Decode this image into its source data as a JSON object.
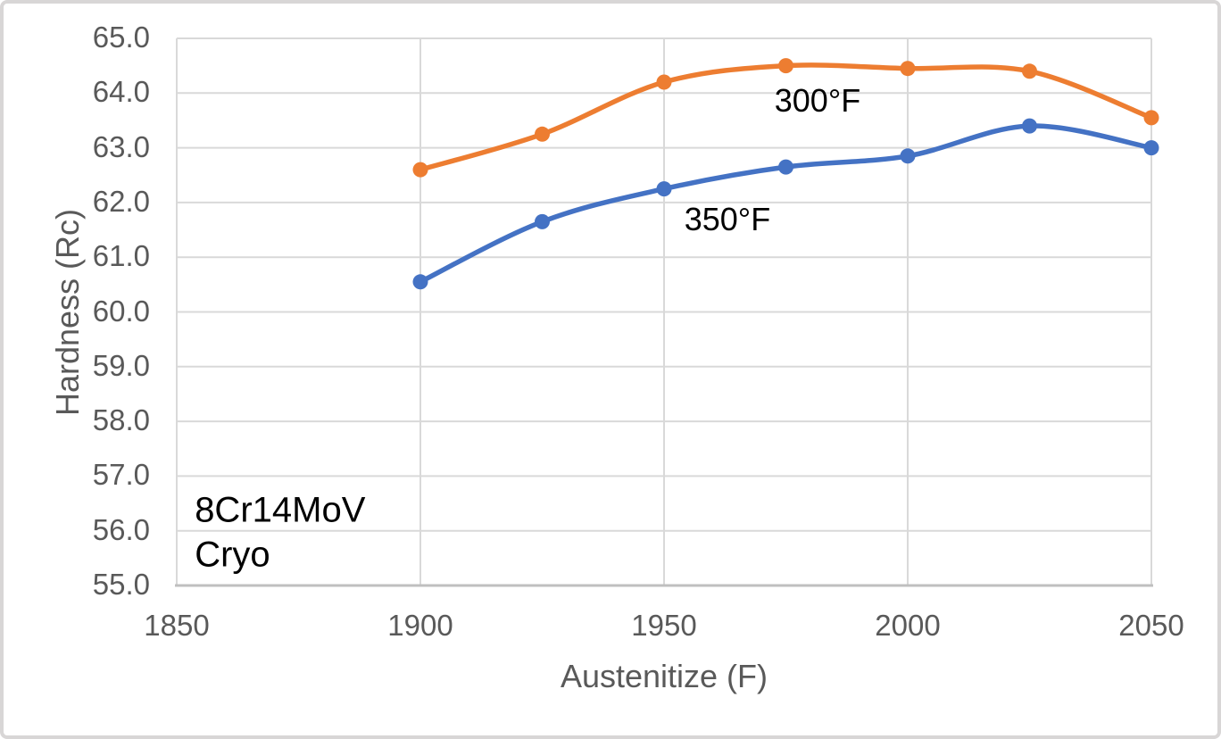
{
  "chart_data": {
    "type": "line",
    "title": "",
    "xlabel": "Austenitize (F)",
    "ylabel": "Hardness (Rc)",
    "xlim": [
      1850,
      2050
    ],
    "ylim": [
      55.0,
      65.0
    ],
    "grid": true,
    "legend_position": "inline-labels",
    "x": [
      1900,
      1925,
      1950,
      1975,
      2000,
      2025,
      2050
    ],
    "series": [
      {
        "name": "300°F",
        "color": "#ED7D31",
        "values": [
          62.6,
          63.25,
          64.2,
          64.5,
          64.45,
          64.4,
          63.55
        ],
        "label": {
          "text": "300°F",
          "x": 1981.5,
          "y": 63.86
        }
      },
      {
        "name": "350°F",
        "color": "#4472C4",
        "values": [
          60.55,
          61.65,
          62.25,
          62.65,
          62.85,
          63.4,
          63.0
        ],
        "label": {
          "text": "350°F",
          "x": 1963.0,
          "y": 61.69
        }
      }
    ],
    "x_ticks": [
      {
        "value": 1850,
        "label": "1850"
      },
      {
        "value": 1900,
        "label": "1900"
      },
      {
        "value": 1950,
        "label": "1950"
      },
      {
        "value": 2000,
        "label": "2000"
      },
      {
        "value": 2050,
        "label": "2050"
      }
    ],
    "y_ticks": [
      {
        "value": 55.0,
        "label": "55.0"
      },
      {
        "value": 56.0,
        "label": "56.0"
      },
      {
        "value": 57.0,
        "label": "57.0"
      },
      {
        "value": 58.0,
        "label": "58.0"
      },
      {
        "value": 59.0,
        "label": "59.0"
      },
      {
        "value": 60.0,
        "label": "60.0"
      },
      {
        "value": 61.0,
        "label": "61.0"
      },
      {
        "value": 62.0,
        "label": "62.0"
      },
      {
        "value": 63.0,
        "label": "63.0"
      },
      {
        "value": 64.0,
        "label": "64.0"
      },
      {
        "value": 65.0,
        "label": "65.0"
      }
    ],
    "annotations": [
      {
        "text": "8Cr14MoV",
        "x": 1853.7,
        "y": 56.37,
        "anchor": "start"
      },
      {
        "text": "Cryo",
        "x": 1853.7,
        "y": 55.55,
        "anchor": "start"
      }
    ],
    "colors": {
      "gridline": "#D9D9D9",
      "axis_line": "#BFBFBF",
      "tick_text": "#595959",
      "label_text": "#000000",
      "frame_border": "#D8D6D6",
      "background": "#FFFFFF"
    }
  }
}
